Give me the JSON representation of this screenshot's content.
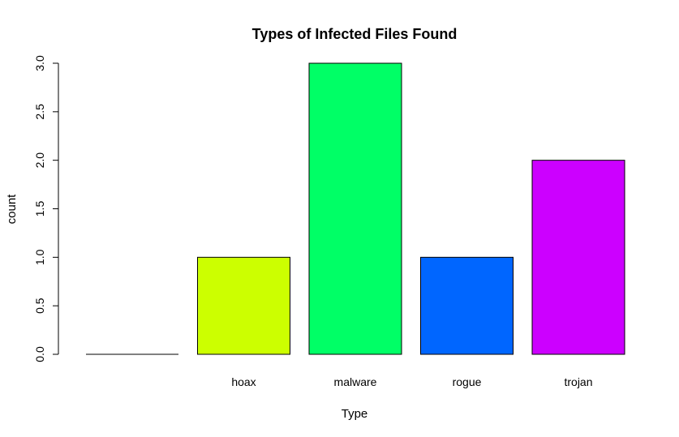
{
  "chart_data": {
    "type": "bar",
    "title": "Types of Infected Files Found",
    "xlabel": "Type",
    "ylabel": "count",
    "categories": [
      "",
      "hoax",
      "malware",
      "rogue",
      "trojan"
    ],
    "values": [
      0,
      1,
      3,
      1,
      2
    ],
    "colors": [
      "#FF0000",
      "#CCFF00",
      "#00FF66",
      "#0066FF",
      "#CC00FF"
    ],
    "ylim": [
      0,
      3
    ],
    "yticks": [
      0,
      0.5,
      1,
      1.5,
      2,
      2.5,
      3
    ],
    "ytick_labels": [
      "0.0",
      "0.5",
      "1.0",
      "1.5",
      "2.0",
      "2.5",
      "3.0"
    ],
    "grid": false,
    "legend": "none"
  }
}
